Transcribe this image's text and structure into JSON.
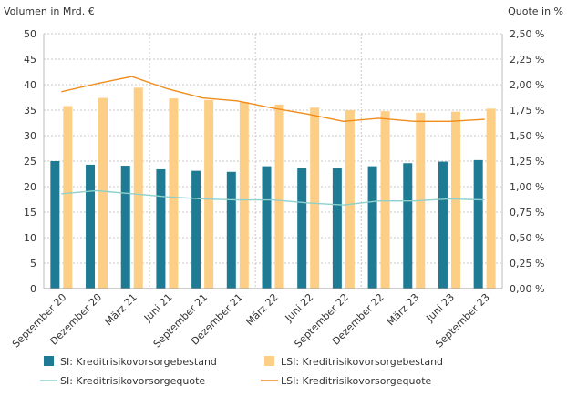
{
  "chart_data": {
    "type": "bar",
    "ylabel_left": "Volumen in Mrd. €",
    "ylabel_right": "Quote in %",
    "categories": [
      "September 20",
      "Dezember 20",
      "März 21",
      "Juni 21",
      "September 21",
      "Dezember 21",
      "März 22",
      "Juni 22",
      "September 22",
      "Dezember 22",
      "März 23",
      "Juni 23",
      "September 23"
    ],
    "ylim_left": [
      0,
      50
    ],
    "yticks_left": [
      "0",
      "5",
      "10",
      "15",
      "20",
      "25",
      "30",
      "35",
      "40",
      "45",
      "50"
    ],
    "ylim_right": [
      0,
      2.5
    ],
    "yticks_right": [
      "0,00 %",
      "0,25 %",
      "0,50 %",
      "0,75 %",
      "1,00 %",
      "1,25 %",
      "1,50 %",
      "1,75 %",
      "2,00 %",
      "2,25 %",
      "2,50 %"
    ],
    "grid": "vertical dashed every 3rd category, horizontal dashed",
    "legend_position": "bottom",
    "series": [
      {
        "name": "SI: Kreditrisikovorsorgebestand",
        "kind": "bar",
        "axis": "left",
        "color": "#1f7a94",
        "values": [
          25.0,
          24.3,
          24.1,
          23.4,
          23.1,
          22.9,
          24.0,
          23.6,
          23.7,
          24.0,
          24.6,
          24.9,
          25.2
        ]
      },
      {
        "name": "LSI: Kreditrisikovorsorgebestand",
        "kind": "bar",
        "axis": "left",
        "color": "#fdce85",
        "values": [
          35.8,
          37.4,
          39.4,
          37.3,
          37.0,
          36.6,
          36.1,
          35.5,
          35.0,
          34.8,
          34.5,
          34.7,
          35.3
        ]
      },
      {
        "name": "SI: Kreditrisikovorsorgequote",
        "kind": "line",
        "axis": "right",
        "color": "#8ed0cc",
        "values": [
          0.93,
          0.96,
          0.93,
          0.9,
          0.88,
          0.87,
          0.87,
          0.84,
          0.82,
          0.86,
          0.86,
          0.88,
          0.87
        ]
      },
      {
        "name": "LSI: Kreditrisikovorsorgequote",
        "kind": "line",
        "axis": "right",
        "color": "#ef8c1a",
        "values": [
          1.93,
          2.01,
          2.08,
          1.96,
          1.87,
          1.84,
          1.77,
          1.71,
          1.64,
          1.67,
          1.64,
          1.64,
          1.66
        ]
      }
    ]
  }
}
